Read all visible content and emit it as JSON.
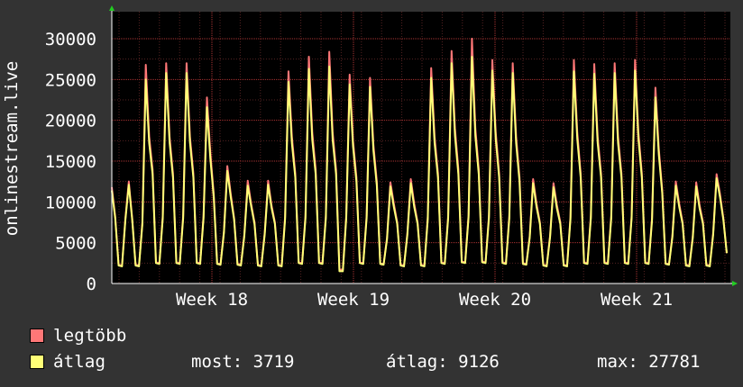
{
  "chart_data": {
    "type": "area",
    "ylabel": "onlinestream.live",
    "yticks": [
      0,
      5000,
      10000,
      15000,
      20000,
      25000,
      30000
    ],
    "ylim": [
      0,
      30000
    ],
    "x_tick_labels": [
      "Week 18",
      "Week 19",
      "Week 20",
      "Week 21"
    ],
    "grid": true,
    "series": [
      {
        "name": "legtöbb",
        "color": "#ff7777",
        "values": [
          11800,
          8200,
          2300,
          2200,
          8000,
          12500,
          8000,
          2300,
          2200,
          7500,
          26800,
          18000,
          14000,
          2600,
          2500,
          8300,
          27000,
          18000,
          13500,
          2600,
          2500,
          8300,
          27000,
          18000,
          13500,
          2600,
          2500,
          8300,
          22800,
          16000,
          11000,
          2500,
          2400,
          6400,
          14400,
          11000,
          8000,
          2400,
          2300,
          6000,
          12600,
          9800,
          7500,
          2300,
          2200,
          6200,
          12600,
          9600,
          7500,
          2300,
          2200,
          8200,
          26000,
          18000,
          13500,
          2600,
          2500,
          8300,
          27800,
          18500,
          14000,
          2600,
          2500,
          8300,
          28400,
          18500,
          14000,
          1700,
          1700,
          8300,
          25600,
          17500,
          13000,
          2600,
          2500,
          8300,
          25200,
          17000,
          12500,
          2500,
          2400,
          5600,
          12400,
          9800,
          7500,
          2300,
          2200,
          6200,
          12800,
          9800,
          7500,
          2300,
          2200,
          8200,
          26400,
          18000,
          13500,
          2600,
          2500,
          8300,
          28500,
          19000,
          14000,
          2700,
          2600,
          8400,
          30000,
          19000,
          14000,
          2700,
          2600,
          8300,
          27400,
          18500,
          13500,
          2600,
          2500,
          8300,
          27000,
          18000,
          13000,
          2500,
          2400,
          5800,
          12800,
          9800,
          7500,
          2300,
          2200,
          5900,
          12300,
          9600,
          7500,
          2300,
          2200,
          8200,
          27400,
          18500,
          13500,
          2600,
          2500,
          8300,
          26900,
          18000,
          13500,
          2600,
          2500,
          8300,
          27000,
          18000,
          13500,
          2600,
          2500,
          8300,
          27400,
          18500,
          13500,
          2600,
          2500,
          8000,
          24000,
          16500,
          11500,
          2500,
          2400,
          5900,
          12500,
          9800,
          7500,
          2300,
          2200,
          5800,
          12400,
          9600,
          7500,
          2300,
          2200,
          6200,
          13400,
          11000,
          8000,
          3719
        ]
      },
      {
        "name": "átlag",
        "color": "#ffff77",
        "values": [
          11400,
          8000,
          2200,
          2100,
          7800,
          12100,
          7800,
          2200,
          2100,
          7300,
          25000,
          17200,
          13400,
          2500,
          2400,
          8000,
          25800,
          17300,
          13000,
          2500,
          2400,
          8000,
          25800,
          17300,
          13000,
          2500,
          2400,
          8000,
          21600,
          15300,
          10600,
          2400,
          2300,
          6200,
          13800,
          10600,
          7800,
          2300,
          2200,
          5800,
          12000,
          9500,
          7300,
          2200,
          2100,
          6000,
          12100,
          9300,
          7300,
          2200,
          2100,
          7900,
          24700,
          17200,
          13000,
          2500,
          2400,
          8000,
          26300,
          17600,
          13400,
          2500,
          2400,
          8000,
          26600,
          17600,
          13400,
          1500,
          1500,
          8000,
          24400,
          16800,
          12500,
          2500,
          2400,
          8000,
          24100,
          16300,
          12000,
          2400,
          2300,
          5400,
          11900,
          9400,
          7300,
          2200,
          2100,
          6000,
          12300,
          9400,
          7300,
          2200,
          2100,
          7900,
          25200,
          17200,
          13000,
          2500,
          2400,
          8000,
          27000,
          18100,
          13400,
          2600,
          2500,
          8100,
          27781,
          18100,
          13400,
          2600,
          2500,
          8000,
          26100,
          17700,
          13000,
          2500,
          2400,
          8000,
          25800,
          17200,
          12500,
          2400,
          2300,
          5600,
          12300,
          9400,
          7300,
          2200,
          2100,
          5700,
          11800,
          9200,
          7300,
          2200,
          2100,
          7900,
          26000,
          17700,
          13000,
          2500,
          2400,
          8000,
          25700,
          17200,
          13000,
          2500,
          2400,
          8000,
          25800,
          17200,
          13000,
          2500,
          2400,
          8000,
          26100,
          17700,
          13000,
          2500,
          2400,
          7700,
          22800,
          15800,
          11100,
          2400,
          2300,
          5700,
          12000,
          9400,
          7300,
          2200,
          2100,
          5600,
          11900,
          9200,
          7300,
          2200,
          2100,
          6000,
          12900,
          10600,
          7800,
          3719
        ]
      }
    ]
  },
  "legend": [
    {
      "label": "legtöbb",
      "color": "#ff7777"
    },
    {
      "label": "átlag",
      "color": "#ffff77"
    }
  ],
  "stats": {
    "most": "most: 3719",
    "atlag": "átlag: 9126",
    "max": "max: 27781"
  }
}
